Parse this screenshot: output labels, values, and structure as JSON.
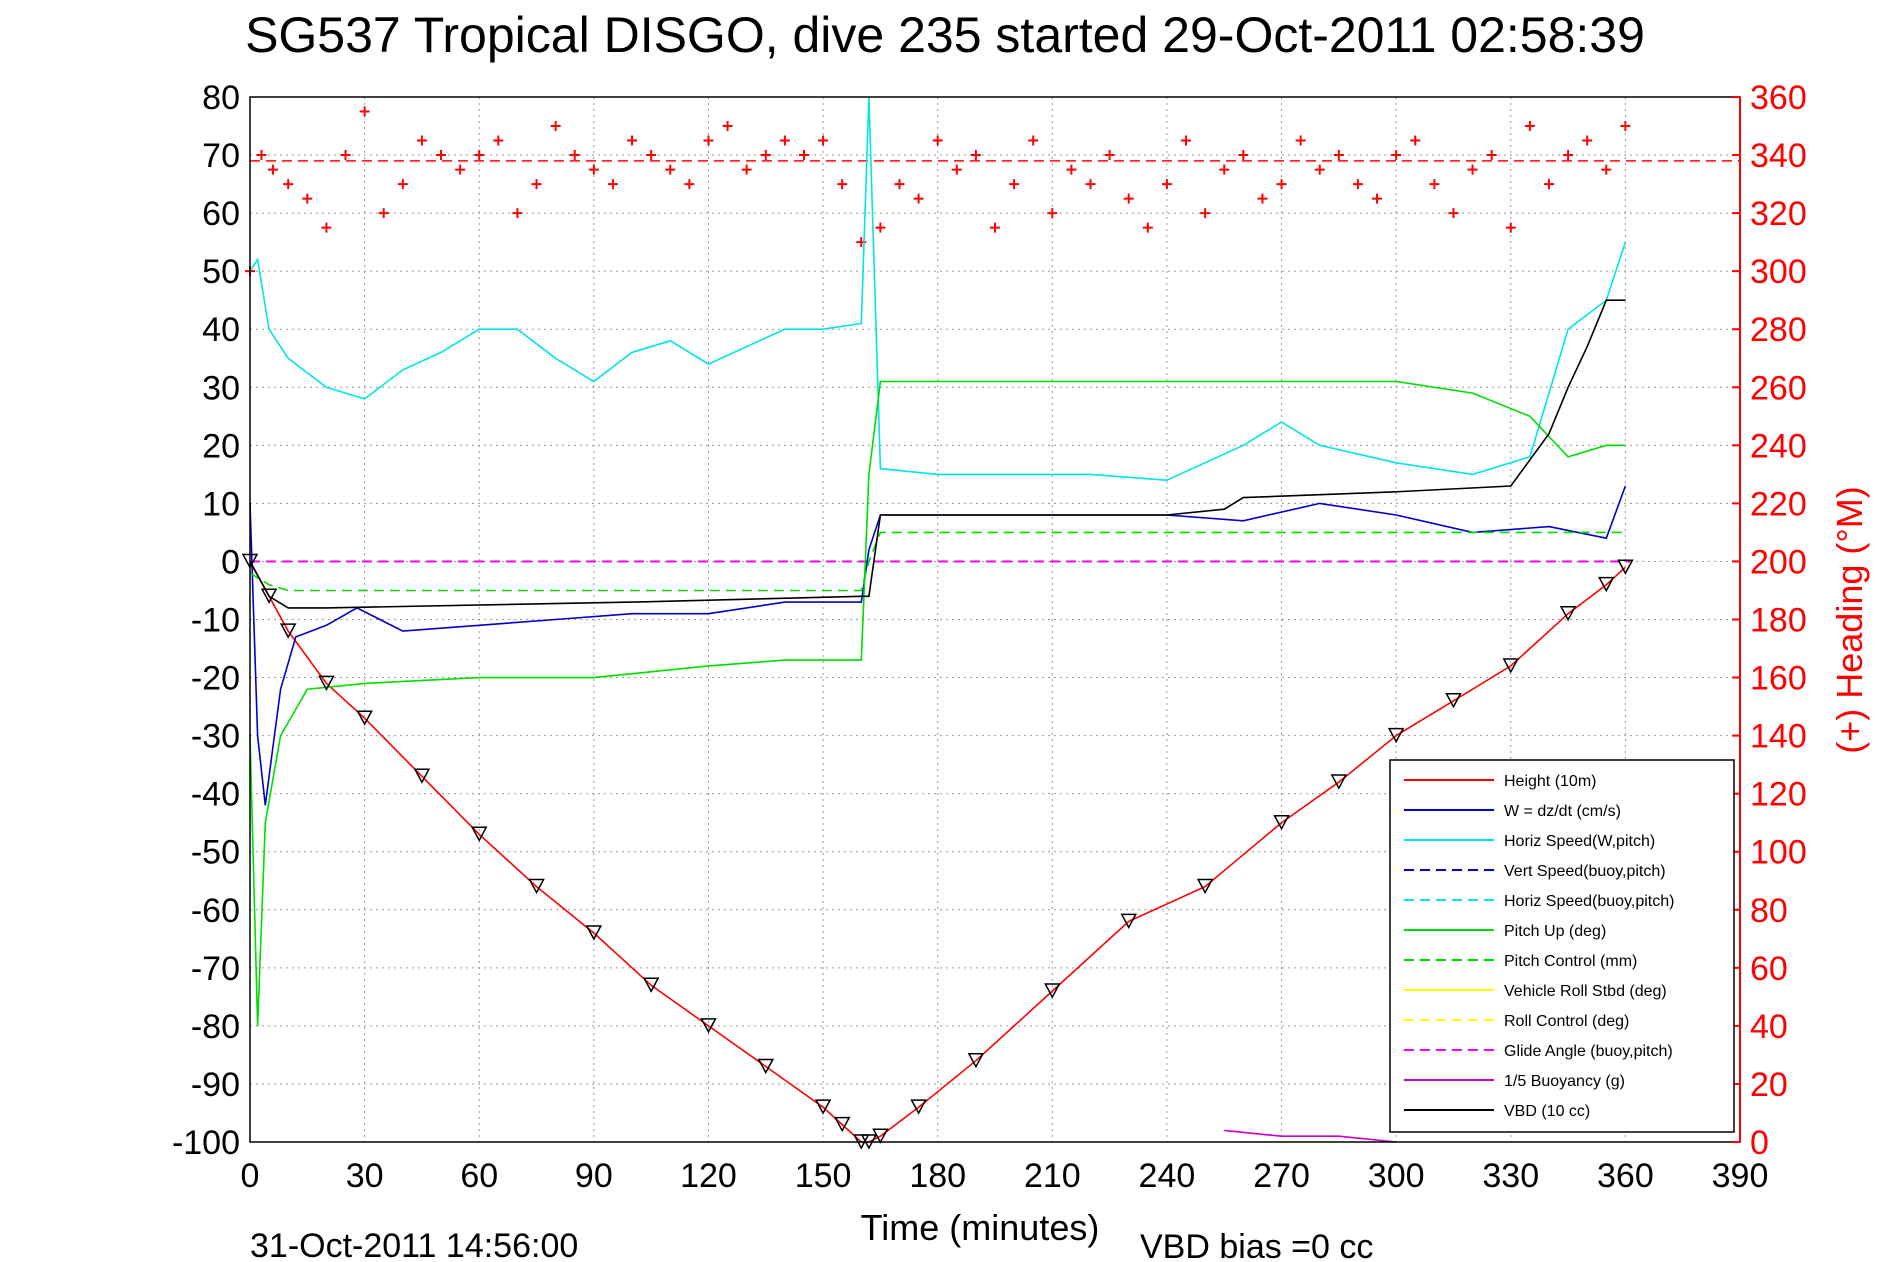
{
  "chart_data": {
    "type": "line",
    "title": "SG537 Tropical DISGO, dive 235 started 29-Oct-2011 02:58:39",
    "xlabel": "Time (minutes)",
    "ylabel_right": "(+) Heading (°M)",
    "xlim": [
      0,
      390
    ],
    "ylim": [
      -100,
      80
    ],
    "ylim_right": [
      0,
      360
    ],
    "xticks": [
      "0",
      "30",
      "60",
      "90",
      "120",
      "150",
      "180",
      "210",
      "240",
      "270",
      "300",
      "330",
      "360",
      "390"
    ],
    "yticks": [
      "80",
      "70",
      "60",
      "50",
      "40",
      "30",
      "20",
      "10",
      "0",
      "-10",
      "-20",
      "-30",
      "-40",
      "-50",
      "-60",
      "-70",
      "-80",
      "-90",
      "-100"
    ],
    "yticks_right": [
      "360",
      "340",
      "320",
      "300",
      "280",
      "260",
      "240",
      "220",
      "200",
      "180",
      "160",
      "140",
      "120",
      "100",
      "80",
      "60",
      "40",
      "20",
      "0"
    ],
    "grid": true,
    "legend_position": "lower-right",
    "colors": {
      "height": "#ff0000",
      "w": "#0000cc",
      "horiz_speed": "#00e5e5",
      "pitch": "#00dd00",
      "roll": "#ffff00",
      "glide": "#ff00ff",
      "buoyancy": "#cc00cc",
      "vbd": "#000000",
      "heading": "#ff0000"
    },
    "legend": [
      {
        "label": "Height (10m)",
        "color": "#ff0000",
        "dash": false
      },
      {
        "label": "W = dz/dt (cm/s)",
        "color": "#0000cc",
        "dash": false
      },
      {
        "label": "Horiz Speed(W,pitch)",
        "color": "#00e5e5",
        "dash": false
      },
      {
        "label": "Vert Speed(buoy,pitch)",
        "color": "#0000cc",
        "dash": true
      },
      {
        "label": "Horiz Speed(buoy,pitch)",
        "color": "#00e5e5",
        "dash": true
      },
      {
        "label": "Pitch Up (deg)",
        "color": "#00dd00",
        "dash": false
      },
      {
        "label": "Pitch Control (mm)",
        "color": "#00dd00",
        "dash": true
      },
      {
        "label": "Vehicle Roll Stbd (deg)",
        "color": "#ffff00",
        "dash": false
      },
      {
        "label": "Roll Control (deg)",
        "color": "#ffff00",
        "dash": true
      },
      {
        "label": "Glide Angle (buoy,pitch)",
        "color": "#ff00ff",
        "dash": true
      },
      {
        "label": "1/5 Buoyancy (g)",
        "color": "#cc00cc",
        "dash": false
      },
      {
        "label": "VBD (10 cc)",
        "color": "#000000",
        "dash": false
      }
    ],
    "series": [
      {
        "name": "Height (10m)",
        "x": [
          0,
          5,
          10,
          20,
          30,
          45,
          60,
          75,
          90,
          105,
          120,
          135,
          150,
          155,
          160,
          162,
          165,
          175,
          190,
          210,
          230,
          250,
          270,
          285,
          300,
          315,
          330,
          345,
          355,
          360
        ],
        "y": [
          0,
          -6,
          -12,
          -21,
          -27,
          -37,
          -47,
          -56,
          -64,
          -73,
          -80,
          -87,
          -94,
          -97,
          -100,
          -100,
          -99,
          -94,
          -86,
          -74,
          -62,
          -56,
          -45,
          -38,
          -30,
          -24,
          -18,
          -9,
          -4,
          -1
        ]
      },
      {
        "name": "W = dz/dt (cm/s)",
        "x": [
          0,
          2,
          4,
          6,
          8,
          12,
          16,
          20,
          28,
          40,
          60,
          80,
          100,
          120,
          140,
          160,
          162,
          165,
          200,
          240,
          260,
          280,
          300,
          320,
          340,
          355,
          360
        ],
        "y": [
          10,
          -30,
          -42,
          -32,
          -22,
          -13,
          -12,
          -11,
          -8,
          -12,
          -11,
          -10,
          -9,
          -9,
          -7,
          -7,
          2,
          8,
          8,
          8,
          7,
          10,
          8,
          5,
          6,
          4,
          13
        ]
      },
      {
        "name": "Horiz Speed(W,pitch)",
        "x": [
          0,
          2,
          5,
          10,
          20,
          30,
          40,
          50,
          60,
          70,
          80,
          90,
          100,
          110,
          120,
          130,
          140,
          150,
          160,
          162,
          165,
          180,
          200,
          220,
          240,
          260,
          270,
          280,
          300,
          320,
          335,
          345,
          355,
          360
        ],
        "y": [
          50,
          52,
          40,
          35,
          30,
          28,
          33,
          36,
          40,
          40,
          35,
          31,
          36,
          38,
          34,
          37,
          40,
          40,
          41,
          80,
          16,
          15,
          15,
          15,
          14,
          20,
          24,
          20,
          17,
          15,
          18,
          40,
          45,
          55
        ]
      },
      {
        "name": "Pitch Up (deg)",
        "x": [
          0,
          2,
          4,
          8,
          15,
          30,
          60,
          90,
          120,
          140,
          160,
          162,
          165,
          200,
          240,
          270,
          300,
          320,
          335,
          345,
          355,
          360
        ],
        "y": [
          -30,
          -80,
          -45,
          -30,
          -22,
          -21,
          -20,
          -20,
          -18,
          -17,
          -17,
          15,
          31,
          31,
          31,
          31,
          31,
          29,
          25,
          18,
          20,
          20
        ]
      },
      {
        "name": "Pitch Control (mm)",
        "x": [
          0,
          5,
          10,
          160,
          162,
          165,
          360
        ],
        "y": [
          -2,
          -4,
          -5,
          -5,
          0,
          5,
          5
        ]
      },
      {
        "name": "VBD (10 cc)",
        "x": [
          0,
          5,
          10,
          20,
          100,
          160,
          162,
          165,
          200,
          240,
          255,
          260,
          300,
          330,
          340,
          345,
          350,
          355,
          360
        ],
        "y": [
          0,
          -6,
          -8,
          -8,
          -7,
          -6,
          -6,
          8,
          8,
          8,
          9,
          11,
          12,
          13,
          22,
          30,
          37,
          45,
          45
        ]
      },
      {
        "name": "1/5 Buoyancy (g)",
        "x": [
          255,
          270,
          285,
          300
        ],
        "y": [
          -98,
          -99,
          -99,
          -100
        ]
      }
    ],
    "heading_series": {
      "name": "(+) Heading (°M)",
      "x": [
        0,
        3,
        6,
        10,
        15,
        20,
        25,
        30,
        35,
        40,
        45,
        50,
        55,
        60,
        65,
        70,
        75,
        80,
        85,
        90,
        95,
        100,
        105,
        110,
        115,
        120,
        125,
        130,
        135,
        140,
        145,
        150,
        155,
        160,
        165,
        170,
        175,
        180,
        185,
        190,
        195,
        200,
        205,
        210,
        215,
        220,
        225,
        230,
        235,
        240,
        245,
        250,
        255,
        260,
        265,
        270,
        275,
        280,
        285,
        290,
        295,
        300,
        305,
        310,
        315,
        320,
        325,
        330,
        335,
        340,
        345,
        350,
        355,
        360
      ],
      "y": [
        300,
        340,
        335,
        330,
        325,
        315,
        340,
        355,
        320,
        330,
        345,
        340,
        335,
        340,
        345,
        320,
        330,
        350,
        340,
        335,
        330,
        345,
        340,
        335,
        330,
        345,
        350,
        335,
        340,
        345,
        340,
        345,
        330,
        310,
        315,
        330,
        325,
        345,
        335,
        340,
        315,
        330,
        345,
        320,
        335,
        330,
        340,
        325,
        315,
        330,
        345,
        320,
        335,
        340,
        325,
        330,
        345,
        335,
        340,
        330,
        325,
        340,
        345,
        330,
        320,
        335,
        340,
        315,
        350,
        330,
        340,
        345,
        335,
        350
      ]
    },
    "footer_date": "31-Oct-2011 14:56:00",
    "footer_bias": "VBD bias =0 cc"
  }
}
